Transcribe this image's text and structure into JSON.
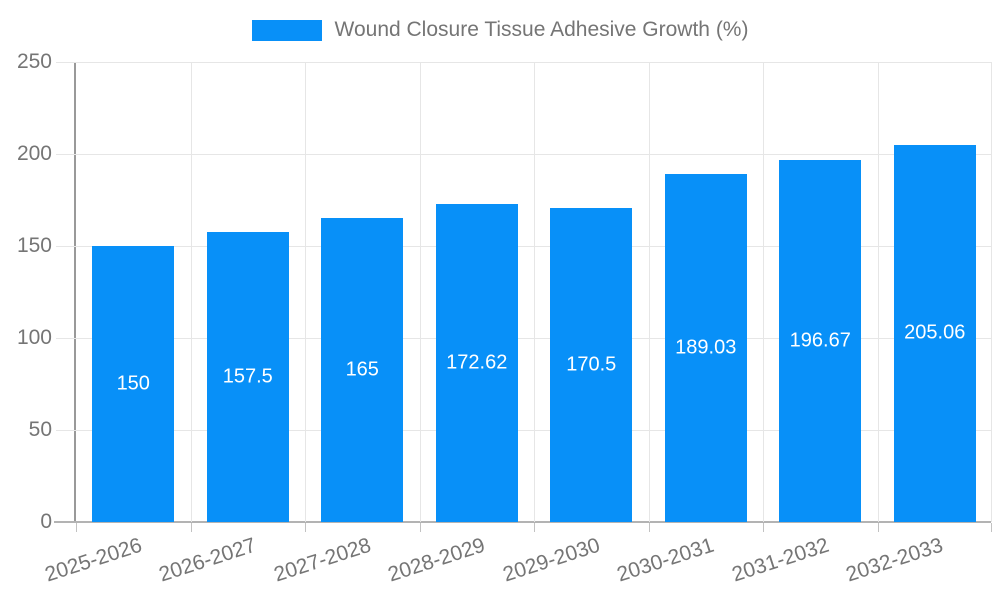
{
  "chart_data": {
    "type": "bar",
    "title": "",
    "legend": {
      "label": "Wound Closure Tissue Adhesive Growth (%)",
      "position": "top-center"
    },
    "categories": [
      "2025-2026",
      "2026-2027",
      "2027-2028",
      "2028-2029",
      "2029-2030",
      "2030-2031",
      "2031-2032",
      "2032-2033"
    ],
    "values": [
      150,
      157.5,
      165,
      172.62,
      170.5,
      189.03,
      196.67,
      205.06
    ],
    "value_labels": [
      "150",
      "157.5",
      "165",
      "172.62",
      "170.5",
      "189.03",
      "196.67",
      "205.06"
    ],
    "xlabel": "",
    "ylabel": "",
    "ylim": [
      0,
      250
    ],
    "yticks": [
      0,
      50,
      100,
      150,
      200,
      250
    ],
    "grid": "horizontal and vertical category boundaries",
    "x_label_rotation_deg": -18,
    "colors": {
      "bar": "#0890F8",
      "bar_label": "#ffffff",
      "axis_text": "#757575",
      "gridline": "#e6e6e6",
      "axis_line": "#999999",
      "baseline": "#b3b3b3",
      "tick": "#c2c2c2"
    }
  }
}
